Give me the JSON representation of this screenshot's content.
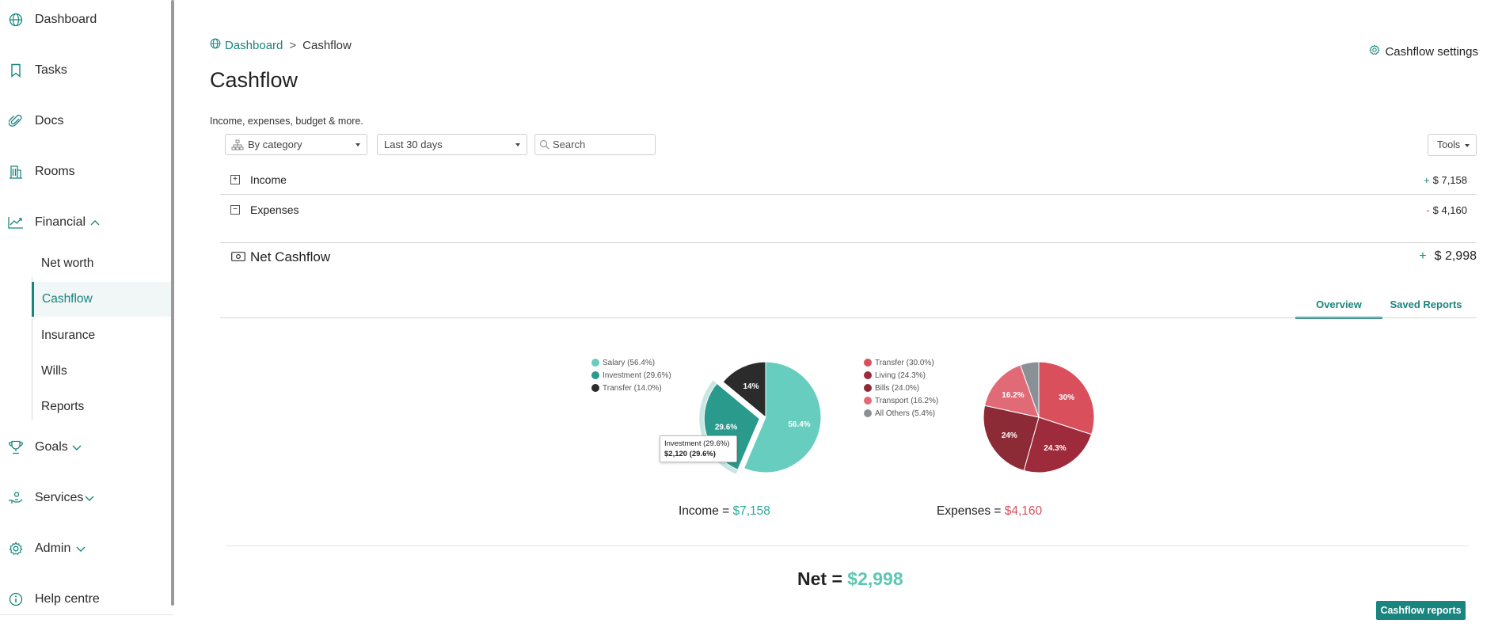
{
  "sidebar": {
    "items": [
      {
        "label": "Dashboard",
        "icon": "globe-icon"
      },
      {
        "label": "Tasks",
        "icon": "bookmark-icon"
      },
      {
        "label": "Docs",
        "icon": "paperclip-icon"
      },
      {
        "label": "Rooms",
        "icon": "building-icon"
      },
      {
        "label": "Financial",
        "icon": "chart-line-icon"
      },
      {
        "label": "Goals",
        "icon": "trophy-icon"
      },
      {
        "label": "Services",
        "icon": "hand-icon"
      },
      {
        "label": "Admin",
        "icon": "gear-icon"
      },
      {
        "label": "Help centre",
        "icon": "info-icon"
      }
    ],
    "financial_sub": [
      {
        "label": "Net worth"
      },
      {
        "label": "Cashflow"
      },
      {
        "label": "Insurance"
      },
      {
        "label": "Wills"
      },
      {
        "label": "Reports"
      }
    ]
  },
  "breadcrumb": {
    "home": "Dashboard",
    "separator": ">",
    "current": "Cashflow"
  },
  "page": {
    "title": "Cashflow",
    "subtitle": "Income, expenses, budget & more.",
    "settings_label": "Cashflow settings"
  },
  "filters": {
    "group_by": "By category",
    "period": "Last 30 days",
    "search_placeholder": "Search",
    "tools": "Tools"
  },
  "rows": {
    "income": {
      "label": "Income",
      "sign": "+",
      "amount": "$ 7,158",
      "toggle": "+"
    },
    "expenses": {
      "label": "Expenses",
      "sign": "-",
      "amount": "$ 4,160",
      "toggle": "−"
    },
    "net": {
      "label": "Net Cashflow",
      "sign": "+",
      "amount": "$ 2,998"
    }
  },
  "tabs": [
    {
      "label": "Overview",
      "active": true
    },
    {
      "label": "Saved Reports",
      "active": false
    }
  ],
  "chart_data": [
    {
      "type": "pie",
      "legend": [
        "Salary (56.4%)",
        "Investment (29.6%)",
        "Transfer (14.0%)"
      ],
      "slices": [
        {
          "name": "Salary",
          "value": 56.4,
          "label": "56.4%",
          "color": "#66cdbf"
        },
        {
          "name": "Investment",
          "value": 29.6,
          "label": "29.6%",
          "color": "#2a9a8c"
        },
        {
          "name": "Transfer",
          "value": 14.0,
          "label": "14%",
          "color": "#2b2b2b"
        }
      ],
      "tooltip": {
        "line1": "Investment (29.6%)",
        "line2": "$2,120 (29.6%)"
      },
      "total_label": "Income =",
      "total_value": "$7,158"
    },
    {
      "type": "pie",
      "legend": [
        "Transfer (30.0%)",
        "Living (24.3%)",
        "Bills (24.0%)",
        "Transport (16.2%)",
        "All Others (5.4%)"
      ],
      "slices": [
        {
          "name": "Transfer",
          "value": 30.0,
          "label": "30%",
          "color": "#d94f5c"
        },
        {
          "name": "Living",
          "value": 24.3,
          "label": "24.3%",
          "color": "#9e2b3c"
        },
        {
          "name": "Bills",
          "value": 24.0,
          "label": "24%",
          "color": "#8c2a36"
        },
        {
          "name": "Transport",
          "value": 16.2,
          "label": "16.2%",
          "color": "#e06b76"
        },
        {
          "name": "All Others",
          "value": 5.4,
          "label": "",
          "color": "#8a9196"
        }
      ],
      "total_label": "Expenses =",
      "total_value": "$4,160"
    }
  ],
  "net_total": {
    "label": "Net =",
    "value": "$2,998"
  },
  "buttons": {
    "reports": "Cashflow reports"
  }
}
